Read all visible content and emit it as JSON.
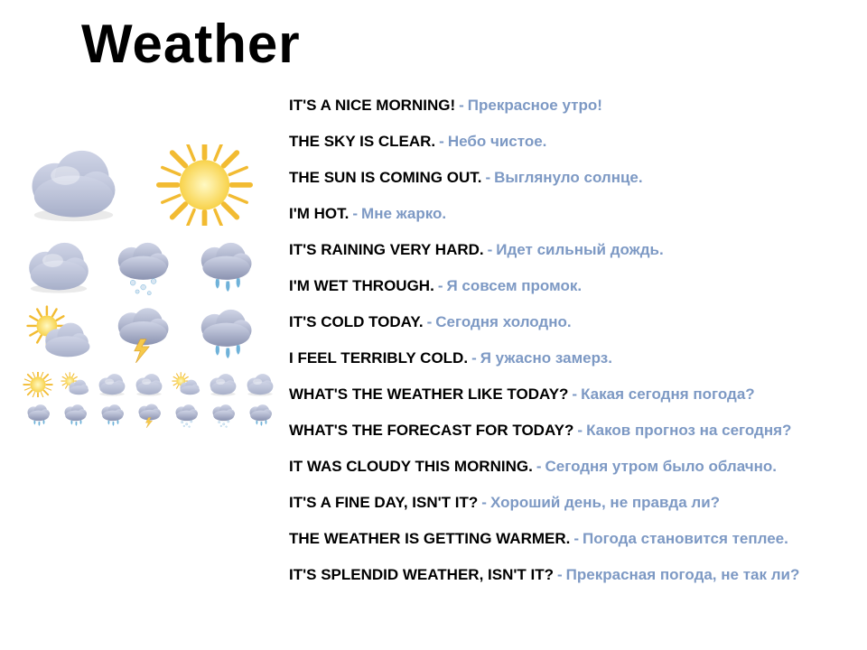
{
  "title": "Weather",
  "colors": {
    "english": "#000000",
    "russian": "#7d99c4",
    "cloud_light": "#cfd4e6",
    "cloud_dark": "#a7afc9",
    "cloud_shadow": "#8a92b0",
    "sun_core": "#fff9c4",
    "sun_outer": "#f8d24a",
    "sun_ray": "#f2bb32",
    "rain": "#6fb2d9",
    "lightning": "#f6c94a",
    "snow": "#d9e6f2"
  },
  "typography": {
    "title_fontsize": 60,
    "title_weight": 700,
    "phrase_fontsize": 17,
    "phrase_weight": 700,
    "font_family": "Arial"
  },
  "phrases": [
    {
      "en": "IT'S A NICE MORNING!",
      "ru": "Прекрасное утро!"
    },
    {
      "en": "THE SKY IS CLEAR.",
      "ru": "Небо чистое."
    },
    {
      "en": "THE SUN IS COMING OUT.",
      "ru": "Выглянуло солнце."
    },
    {
      "en": "I'M HOT.",
      "ru": "Мне жарко."
    },
    {
      "en": "IT'S RAINING VERY HARD.",
      "ru": "Идет сильный дождь."
    },
    {
      "en": "I'M WET THROUGH.",
      "ru": "Я совсем промок."
    },
    {
      "en": "IT'S COLD TODAY.",
      "ru": "Сегодня холодно."
    },
    {
      "en": "I FEEL TERRIBLY COLD.",
      "ru": "Я ужасно замерз."
    },
    {
      "en": "WHAT'S THE WEATHER LIKE TODAY?",
      "ru": "Какая сегодня погода?"
    },
    {
      "en": "WHAT'S THE FORECAST FOR TODAY?",
      "ru": "Каков прогноз на сегодня?"
    },
    {
      "en": "IT WAS CLOUDY THIS MORNING.",
      "ru": "Сегодня утром было облачно."
    },
    {
      "en": "IT'S A FINE DAY, ISN'T IT?",
      "ru": "Хороший день, не правда ли?"
    },
    {
      "en": "THE WEATHER IS GETTING WARMER.",
      "ru": "Погода становится теплее."
    },
    {
      "en": "IT'S SPLENDID WEATHER, ISN'T IT?",
      "ru": "Прекрасная погода, не так ли?"
    }
  ],
  "icon_grid": {
    "large": [
      {
        "name": "cloud-icon",
        "type": "cloud"
      },
      {
        "name": "sun-icon",
        "type": "sun"
      }
    ],
    "medium_rows": [
      [
        {
          "name": "overcast-icon",
          "type": "cloud"
        },
        {
          "name": "snow-icon",
          "type": "snow"
        },
        {
          "name": "heavy-rain-icon",
          "type": "rain"
        }
      ],
      [
        {
          "name": "partly-cloudy-icon",
          "type": "suncloud"
        },
        {
          "name": "storm-icon",
          "type": "storm"
        },
        {
          "name": "light-rain-icon",
          "type": "rain"
        }
      ]
    ],
    "small_rows": [
      [
        {
          "name": "mini-sun-icon",
          "type": "sun"
        },
        {
          "name": "mini-partly-icon",
          "type": "suncloud"
        },
        {
          "name": "mini-cloud-icon",
          "type": "cloud"
        },
        {
          "name": "mini-cloud2-icon",
          "type": "cloud"
        },
        {
          "name": "mini-partly2-icon",
          "type": "suncloud"
        },
        {
          "name": "mini-cloud3-icon",
          "type": "cloud"
        },
        {
          "name": "mini-cloud4-icon",
          "type": "cloud"
        }
      ],
      [
        {
          "name": "mini-rain-icon",
          "type": "rain"
        },
        {
          "name": "mini-lightrain-icon",
          "type": "rain"
        },
        {
          "name": "mini-rain2-icon",
          "type": "rain"
        },
        {
          "name": "mini-storm-icon",
          "type": "storm"
        },
        {
          "name": "mini-snow-icon",
          "type": "snow"
        },
        {
          "name": "mini-snow2-icon",
          "type": "snow"
        },
        {
          "name": "mini-rain3-icon",
          "type": "rain"
        }
      ]
    ],
    "sizes": {
      "large": 115,
      "medium": 82,
      "small": 36
    }
  }
}
